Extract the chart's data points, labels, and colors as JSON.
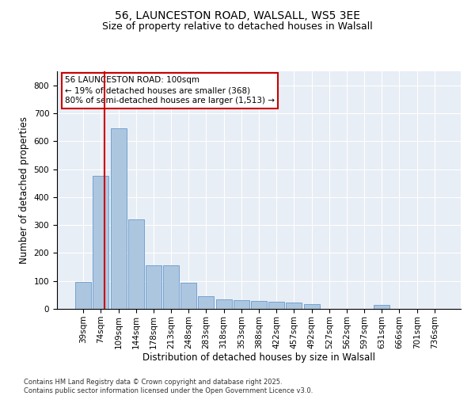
{
  "title1": "56, LAUNCESTON ROAD, WALSALL, WS5 3EE",
  "title2": "Size of property relative to detached houses in Walsall",
  "xlabel": "Distribution of detached houses by size in Walsall",
  "ylabel": "Number of detached properties",
  "bar_categories": [
    "39sqm",
    "74sqm",
    "109sqm",
    "144sqm",
    "178sqm",
    "213sqm",
    "248sqm",
    "283sqm",
    "318sqm",
    "353sqm",
    "388sqm",
    "422sqm",
    "457sqm",
    "492sqm",
    "527sqm",
    "562sqm",
    "597sqm",
    "631sqm",
    "666sqm",
    "701sqm",
    "736sqm"
  ],
  "bar_values": [
    97,
    475,
    645,
    320,
    155,
    155,
    93,
    45,
    35,
    30,
    28,
    25,
    22,
    18,
    0,
    0,
    0,
    15,
    0,
    0,
    0
  ],
  "bar_color": "#adc6e0",
  "bar_edge_color": "#6699cc",
  "vline_color": "#cc0000",
  "annotation_text": "56 LAUNCESTON ROAD: 100sqm\n← 19% of detached houses are smaller (368)\n80% of semi-detached houses are larger (1,513) →",
  "annotation_fontsize": 7.5,
  "box_edge_color": "#cc0000",
  "ylim": [
    0,
    850
  ],
  "yticks": [
    0,
    100,
    200,
    300,
    400,
    500,
    600,
    700,
    800
  ],
  "background_color": "#e8eef5",
  "footnote": "Contains HM Land Registry data © Crown copyright and database right 2025.\nContains public sector information licensed under the Open Government Licence v3.0.",
  "title_fontsize": 10,
  "subtitle_fontsize": 9,
  "xlabel_fontsize": 8.5,
  "ylabel_fontsize": 8.5,
  "tick_fontsize": 7.5
}
